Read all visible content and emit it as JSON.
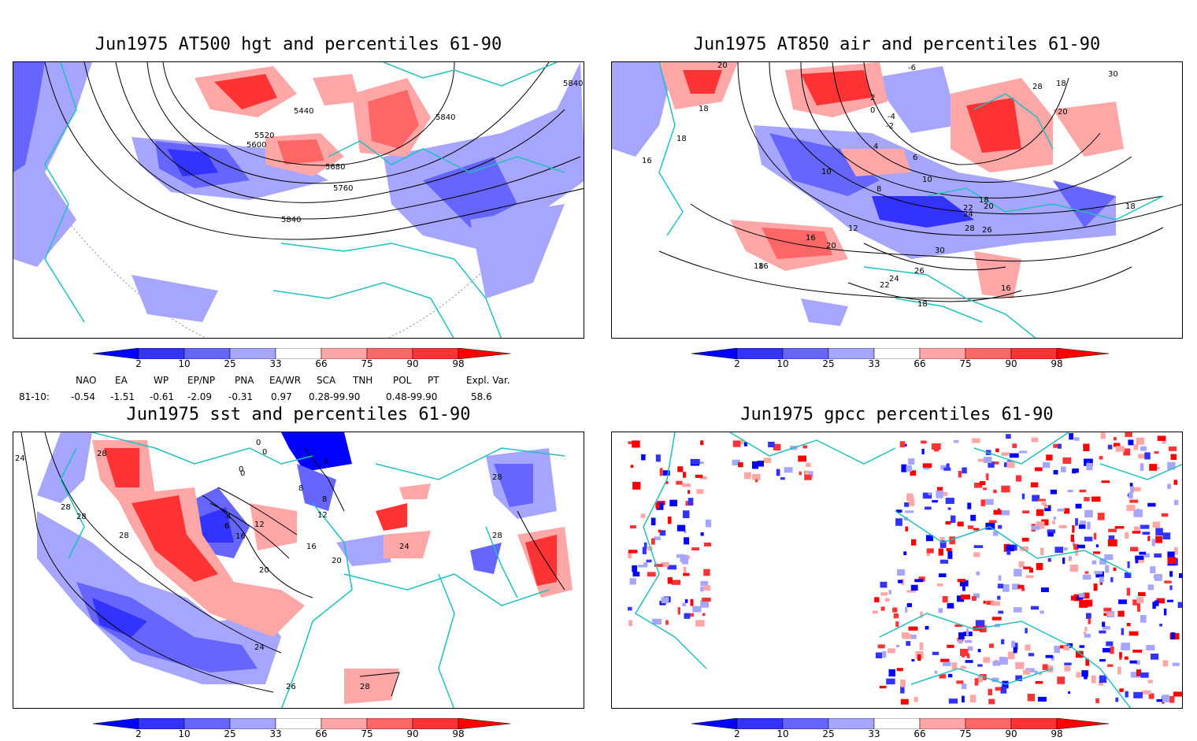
{
  "panels": [
    {
      "title": "Jun1975 AT500 hgt and percentiles 61-90",
      "contour_labels": [
        "5440",
        "5520",
        "5600",
        "5680",
        "5760",
        "5840",
        "5840",
        "5840"
      ]
    },
    {
      "title": "Jun1975 AT850 air and percentiles 61-90",
      "contour_labels": [
        "20",
        "18",
        "18",
        "16",
        "16",
        "-6",
        "2",
        "-4",
        "-2",
        "0",
        "4",
        "6",
        "10",
        "8",
        "10",
        "12",
        "18",
        "20",
        "22",
        "24",
        "28",
        "26",
        "30",
        "26",
        "24",
        "22",
        "20",
        "18",
        "16",
        "16",
        "18",
        "20",
        "28",
        "30",
        "18",
        "18"
      ]
    },
    {
      "title": "Jun1975 sst and percentiles 61-90",
      "contour_labels": [
        "24",
        "28",
        "28",
        "28",
        "0",
        "0",
        "0",
        "0",
        "4",
        "8",
        "8",
        "4",
        "6",
        "12",
        "16",
        "12",
        "16",
        "20",
        "20",
        "24",
        "24",
        "28",
        "28",
        "28",
        "26",
        "28"
      ]
    },
    {
      "title": "Jun1975 gpcc percentiles 61-90",
      "contour_labels": []
    }
  ],
  "colorbar": {
    "labels": [
      "2",
      "10",
      "25",
      "33",
      "66",
      "75",
      "90",
      "98"
    ],
    "colors": [
      "#0000ff",
      "#3333ff",
      "#6666ff",
      "#a6a6ff",
      "#ffffff",
      "#ffa6a6",
      "#ff6666",
      "#ff3333",
      "#ff0000"
    ]
  },
  "indices": {
    "headers": [
      "NAO",
      "EA",
      "WP",
      "EP/NP",
      "PNA",
      "EA/WR",
      "SCA",
      "TNH",
      "POL",
      "PT",
      "Expl. Var."
    ],
    "row_label": "81-10:",
    "values": [
      "-0.54",
      "-1.51",
      "-0.61",
      "-2.09",
      "-0.31",
      "0.97",
      "0.28-99.90",
      "0.48-99.90",
      "58.6"
    ]
  },
  "colors": {
    "coast": "#20c0c0",
    "contour": "#000000",
    "frame": "#000000"
  }
}
